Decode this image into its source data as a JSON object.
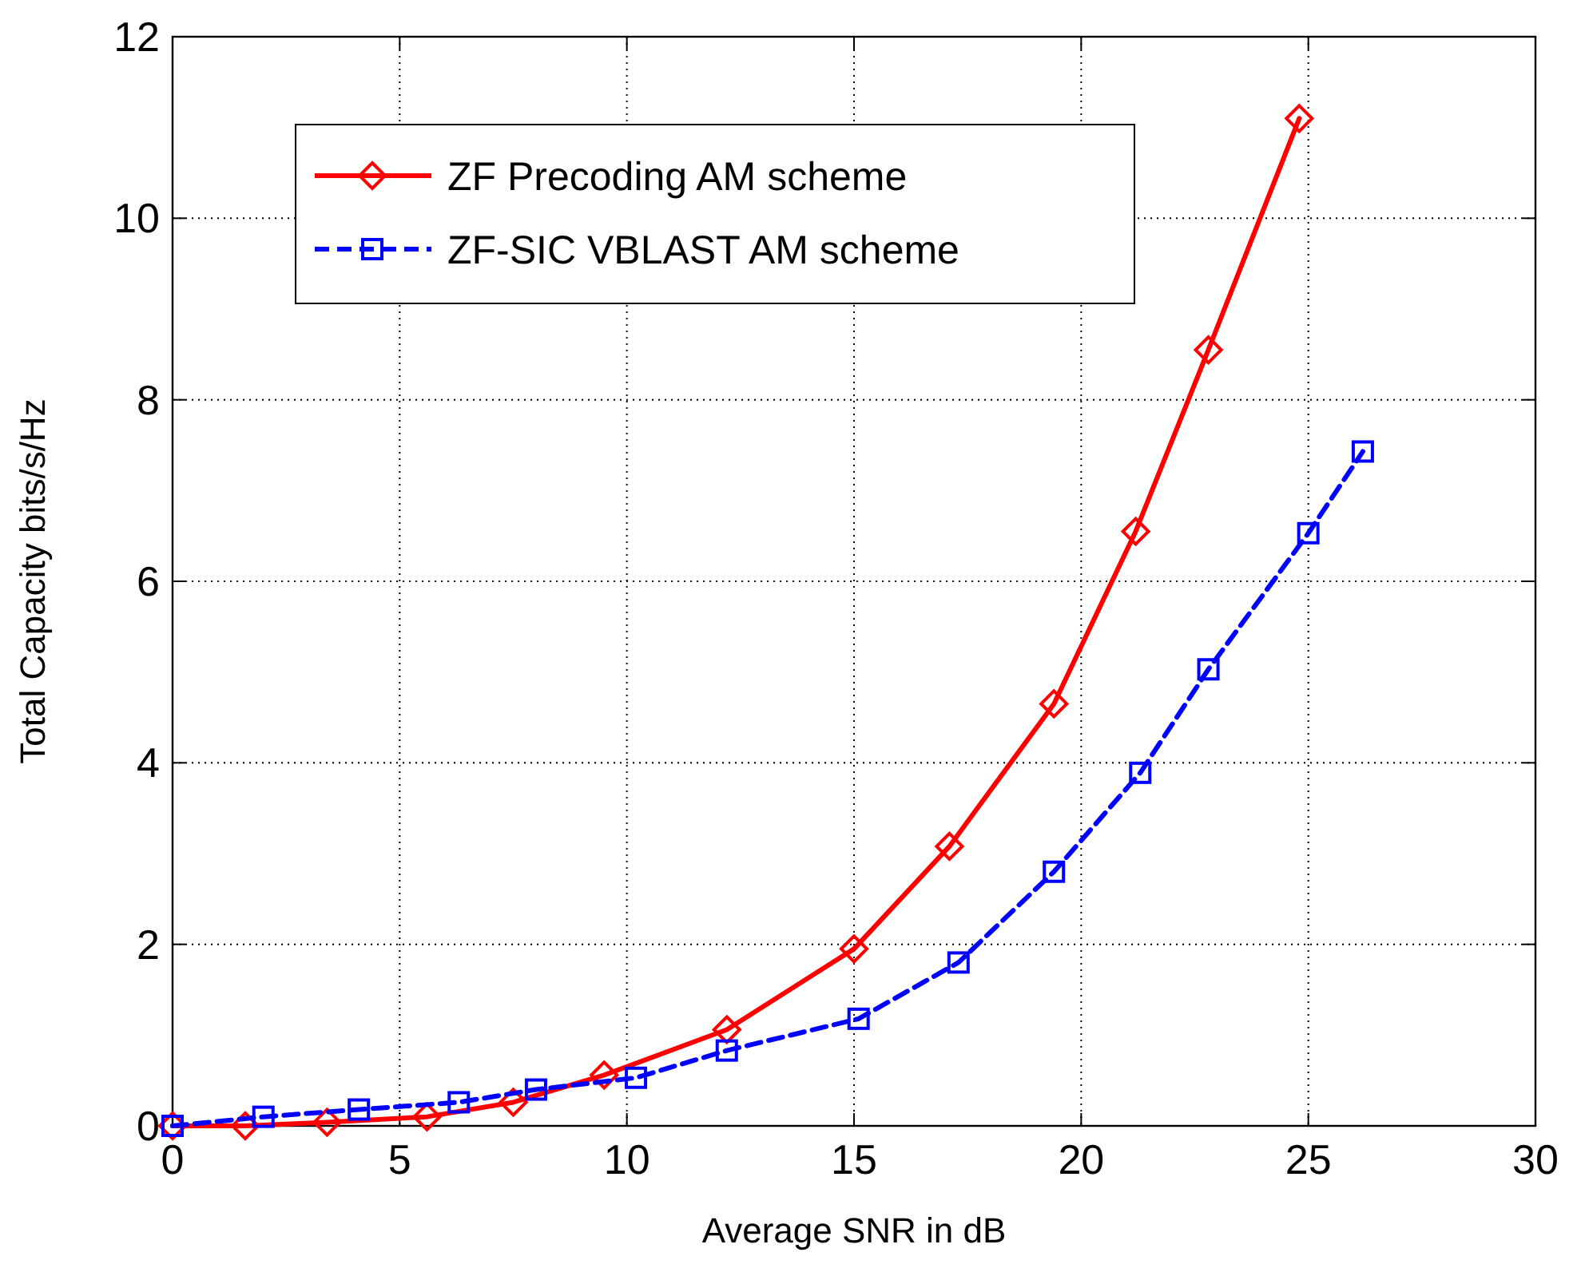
{
  "chart_data": {
    "type": "line",
    "xlabel": "Average SNR in dB",
    "ylabel": "Total Capacity bits/s/Hz",
    "xlim": [
      0,
      30
    ],
    "xticks": [
      0,
      5,
      10,
      15,
      20,
      25,
      30
    ],
    "ylim": [
      0,
      12
    ],
    "yticks": [
      0,
      2,
      4,
      6,
      8,
      10,
      12
    ],
    "grid": true,
    "legend": "top left",
    "series": [
      {
        "name": "ZF Precoding AM scheme",
        "color": "#ff0000",
        "marker": "diamond",
        "line_style": "solid",
        "x": [
          0,
          1.6,
          3.4,
          5.6,
          7.5,
          9.5,
          12.2,
          15.0,
          17.1,
          19.4,
          21.2,
          22.8,
          24.8
        ],
        "values": [
          0,
          0,
          0.04,
          0.1,
          0.26,
          0.56,
          1.06,
          1.95,
          3.08,
          4.65,
          6.55,
          8.55,
          11.1
        ]
      },
      {
        "name": "ZF-SIC VBLAST AM scheme",
        "color": "#0000ff",
        "marker": "square",
        "line_style": "dashed",
        "x": [
          0,
          2.0,
          4.1,
          6.3,
          8.0,
          10.2,
          12.2,
          15.1,
          17.3,
          19.4,
          21.3,
          22.8,
          25.0,
          26.2
        ],
        "values": [
          0,
          0.1,
          0.18,
          0.26,
          0.4,
          0.53,
          0.83,
          1.18,
          1.8,
          2.8,
          3.89,
          5.03,
          6.53,
          7.43
        ]
      }
    ]
  }
}
